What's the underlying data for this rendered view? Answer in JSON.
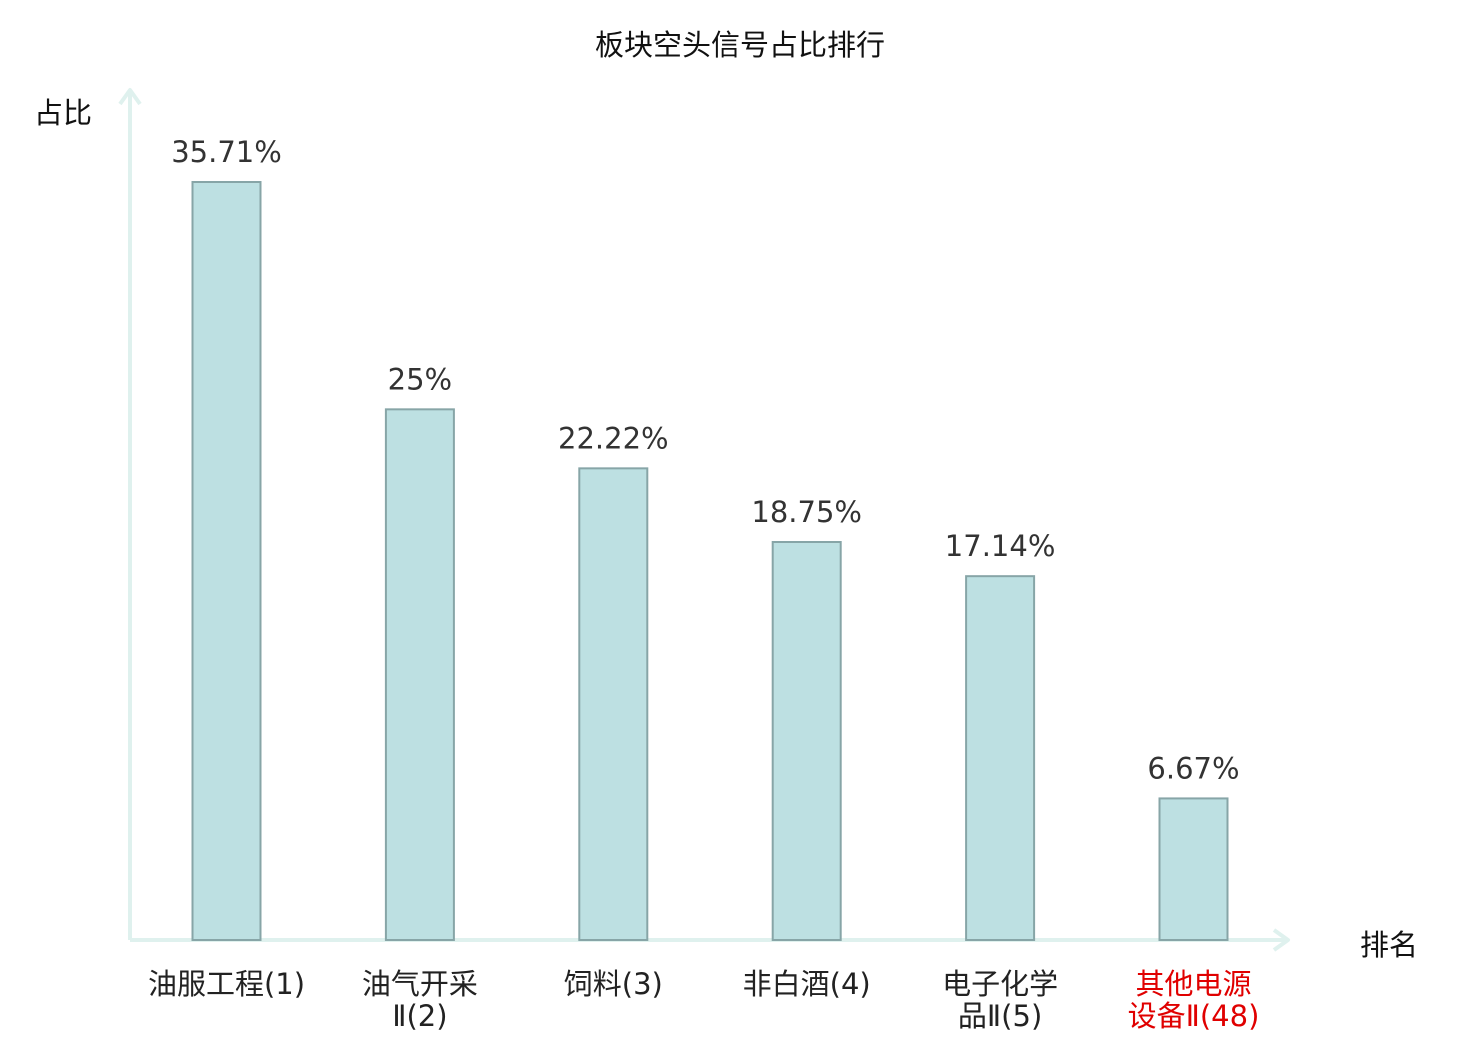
{
  "chart_data": {
    "type": "bar",
    "title": "板块空头信号占比排行",
    "ylabel": "占比",
    "xlabel": "排名",
    "categories": [
      [
        "油服工程(1)"
      ],
      [
        "油气开采",
        "Ⅱ(2)"
      ],
      [
        "饲料(3)"
      ],
      [
        "非白酒(4)"
      ],
      [
        "电子化学",
        "品Ⅱ(5)"
      ],
      [
        "其他电源",
        "设备Ⅱ(48)"
      ]
    ],
    "values": [
      35.71,
      25,
      22.22,
      18.75,
      17.14,
      6.67
    ],
    "value_labels": [
      "35.71%",
      "25%",
      "22.22%",
      "18.75%",
      "17.14%",
      "6.67%"
    ],
    "highlight_index": 5,
    "ylim": [
      0,
      40
    ],
    "grid": false,
    "colors": {
      "bar_fill": "#bde0e2",
      "bar_stroke": "#87a5a7",
      "axis": "#dff1ee",
      "highlight_text": "#e00000",
      "text": "#222222"
    }
  }
}
